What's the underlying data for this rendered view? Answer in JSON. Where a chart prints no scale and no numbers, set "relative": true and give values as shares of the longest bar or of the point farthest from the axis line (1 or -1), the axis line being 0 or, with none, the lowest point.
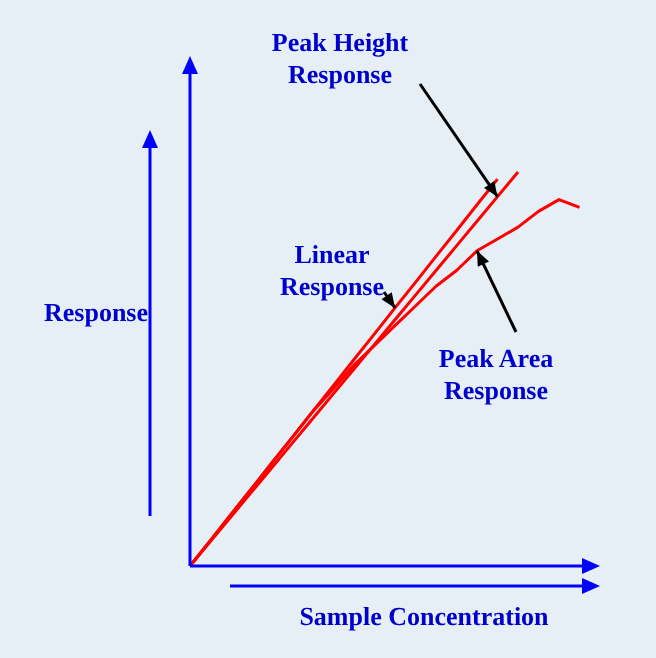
{
  "chart_data": {
    "type": "line",
    "relative": true,
    "xlabel": "Sample Concentration",
    "ylabel": "Response",
    "categories": [
      null,
      null,
      null,
      null,
      null,
      null,
      null,
      null,
      null,
      null,
      null,
      null,
      null,
      null,
      null,
      null,
      null,
      null,
      null,
      null,
      null
    ],
    "series": [
      {
        "name": "Peak Height Response",
        "color": "#ff0000",
        "values": [
          0,
          0.0625,
          0.125,
          0.1875,
          0.25,
          0.3125,
          0.375,
          0.4375,
          0.5,
          0.5625,
          0.625,
          0.6875,
          0.75,
          0.8125,
          0.875,
          0.9375,
          1,
          null,
          null,
          null,
          null
        ]
      },
      {
        "name": "Linear Response",
        "color": "#ff0000",
        "values": [
          0,
          0.065,
          0.131,
          0.196,
          0.262,
          0.327,
          0.393,
          0.458,
          0.524,
          0.589,
          0.655,
          0.72,
          0.786,
          0.851,
          0.917,
          0.982,
          null,
          null,
          null,
          null,
          null
        ]
      },
      {
        "name": "Peak Area Response",
        "color": "#ff0000",
        "values": [
          0,
          0.065,
          0.131,
          0.196,
          0.262,
          0.327,
          0.393,
          0.45,
          0.51,
          0.56,
          0.61,
          0.66,
          0.71,
          0.75,
          0.8,
          0.83,
          0.86,
          0.9,
          0.93,
          0.91,
          null
        ]
      }
    ],
    "legend": false,
    "marker": "none",
    "line_style": "solid"
  }
}
